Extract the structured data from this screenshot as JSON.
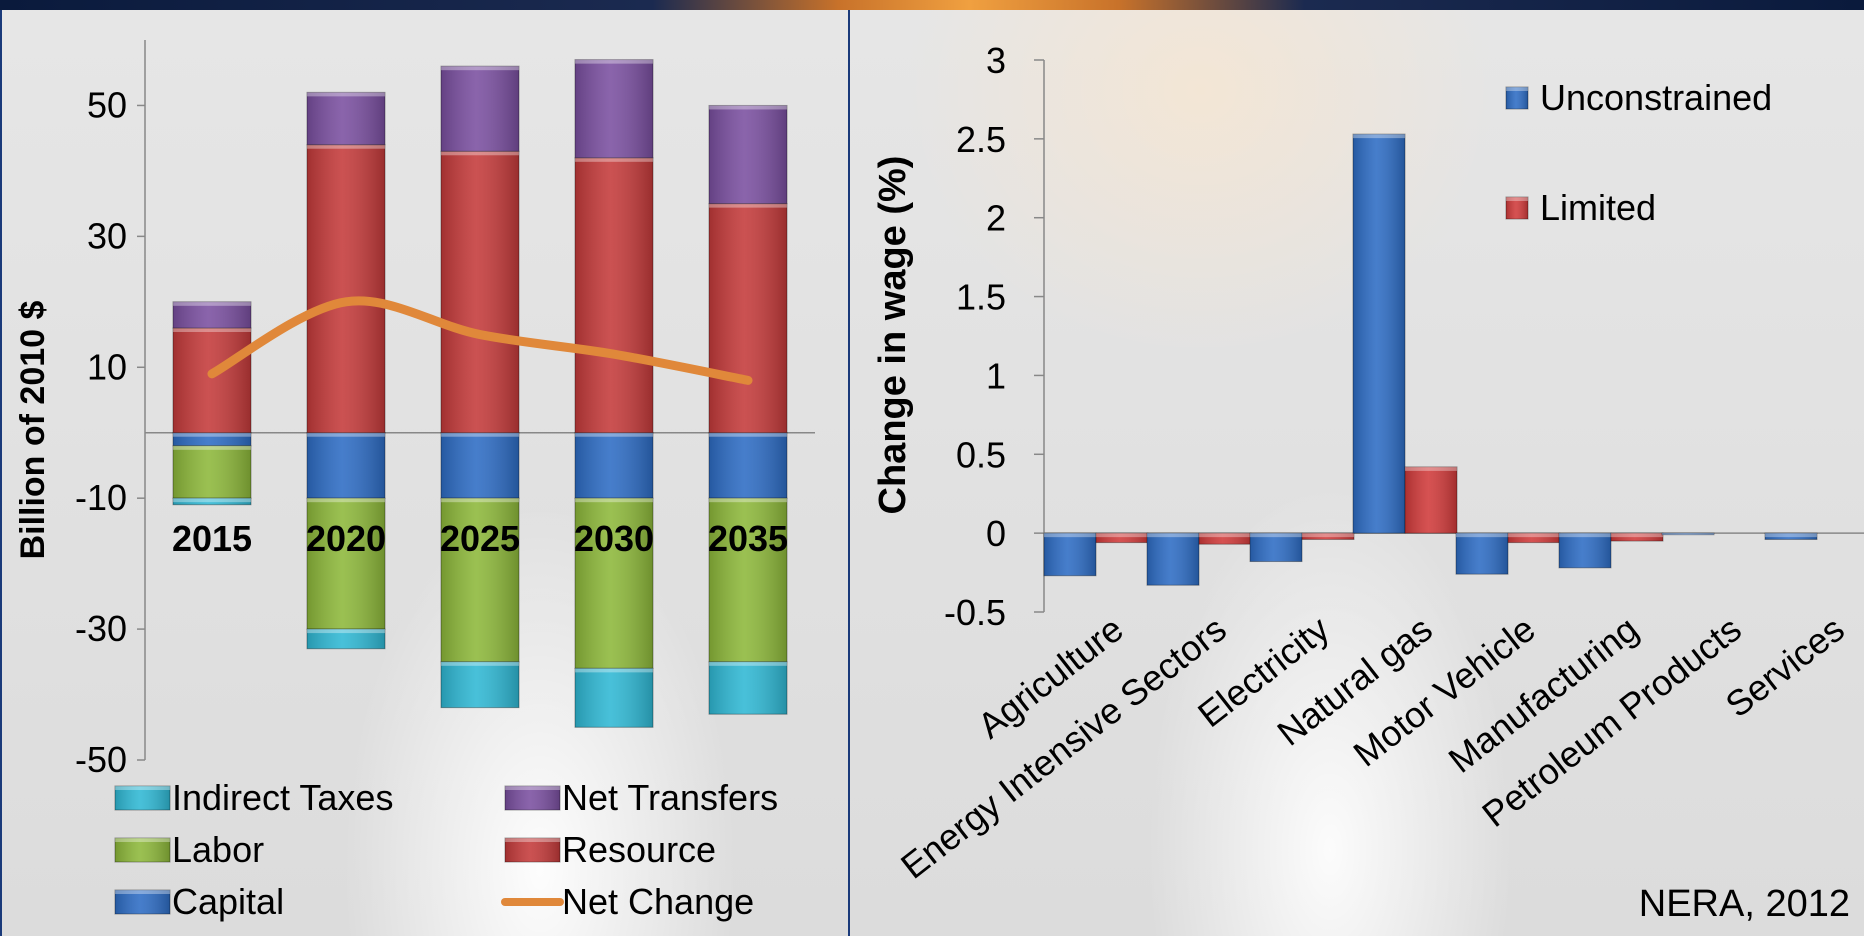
{
  "colors": {
    "indirect_taxes": "#2fb8d4",
    "labor": "#8db83a",
    "capital": "#2d6cc4",
    "net_transfers": "#7a4fa0",
    "resource": "#c43a3a",
    "net_change": "#e0883a",
    "unconstrained": "#2d6cc4",
    "limited": "#d03a3a"
  },
  "chart_data": [
    {
      "type": "bar",
      "stacked": true,
      "categories": [
        "2015",
        "2020",
        "2025",
        "2030",
        "2035"
      ],
      "series": [
        {
          "name": "Capital",
          "color_key": "capital",
          "values": [
            -2,
            -10,
            -10,
            -10,
            -10
          ]
        },
        {
          "name": "Labor",
          "color_key": "labor",
          "values": [
            -8,
            -20,
            -25,
            -26,
            -25
          ]
        },
        {
          "name": "Indirect Taxes",
          "color_key": "indirect_taxes",
          "values": [
            -1,
            -3,
            -7,
            -9,
            -8
          ]
        },
        {
          "name": "Resource",
          "color_key": "resource",
          "values": [
            16,
            44,
            43,
            42,
            35
          ]
        },
        {
          "name": "Net Transfers",
          "color_key": "net_transfers",
          "values": [
            4,
            8,
            13,
            15,
            15
          ]
        }
      ],
      "line_series": {
        "name": "Net Change",
        "color_key": "net_change",
        "values": [
          9,
          20,
          15,
          12,
          8
        ]
      },
      "ylabel": "Billion of 2010 $",
      "xlabel": "",
      "ylim": [
        -50,
        60
      ],
      "yticks": [
        -50,
        -30,
        -10,
        10,
        30,
        50
      ],
      "legend": {
        "placement": "bottom",
        "items": [
          {
            "label": "Indirect Taxes",
            "color_key": "indirect_taxes",
            "kind": "box"
          },
          {
            "label": "Net Transfers",
            "color_key": "net_transfers",
            "kind": "box"
          },
          {
            "label": "Labor",
            "color_key": "labor",
            "kind": "box"
          },
          {
            "label": "Resource",
            "color_key": "resource",
            "kind": "box"
          },
          {
            "label": "Capital",
            "color_key": "capital",
            "kind": "box"
          },
          {
            "label": "Net Change",
            "color_key": "net_change",
            "kind": "line"
          }
        ]
      }
    },
    {
      "type": "bar",
      "categories": [
        "Agriculture",
        "Energy Intensive Sectors",
        "Electricity",
        "Natural gas",
        "Motor Vehicle",
        "Manufacturing",
        "Petroleum Products",
        "Services"
      ],
      "series": [
        {
          "name": "Unconstrained",
          "color_key": "unconstrained",
          "values": [
            -0.27,
            -0.33,
            -0.18,
            2.53,
            -0.26,
            -0.22,
            -0.01,
            -0.04
          ]
        },
        {
          "name": "Limited",
          "color_key": "limited",
          "values": [
            -0.06,
            -0.07,
            -0.04,
            0.42,
            -0.06,
            -0.05,
            0.0,
            0.0
          ]
        }
      ],
      "ylabel": "Change in wage (%)",
      "xlabel": "",
      "ylim": [
        -0.5,
        3
      ],
      "yticks": [
        "-0.5",
        "0",
        "0.5",
        "1",
        "1.5",
        "2",
        "2.5",
        "3"
      ],
      "legend": {
        "placement": "top-right"
      }
    }
  ],
  "source_note": "NERA, 2012"
}
